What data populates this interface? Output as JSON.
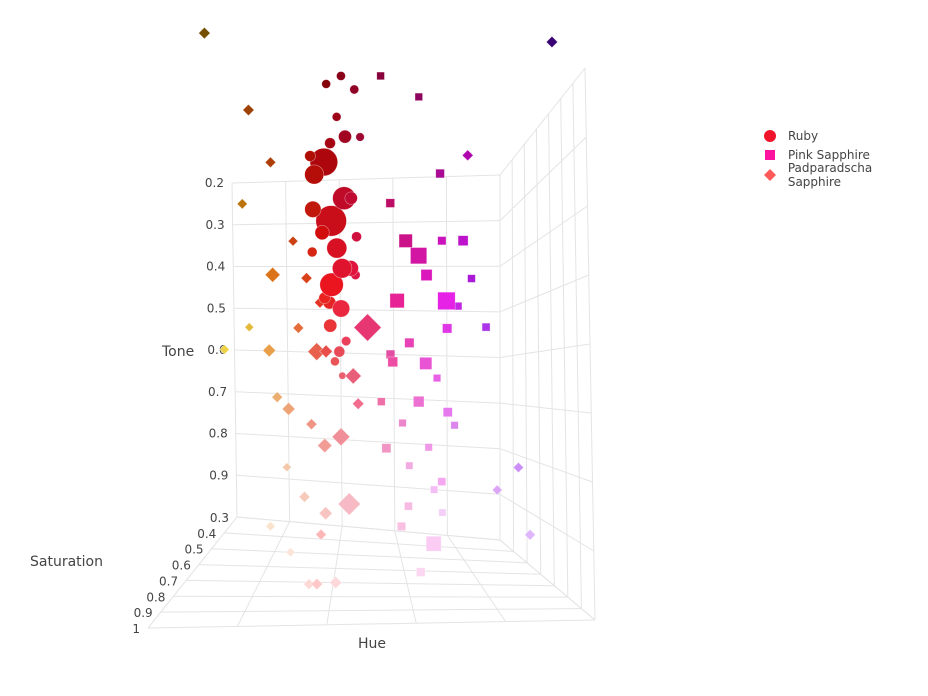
{
  "chart_data": {
    "type": "scatter3d",
    "axes": {
      "x": {
        "title": "Hue",
        "tick_labels": []
      },
      "y": {
        "title": "Saturation",
        "range": [
          0.3,
          1
        ],
        "tick_labels": [
          "0.3",
          "0.4",
          "0.5",
          "0.6",
          "0.7",
          "0.8",
          "0.9",
          "1"
        ]
      },
      "z": {
        "title": "Tone",
        "range": [
          0.2,
          1
        ],
        "tick_labels": [
          "0.2",
          "0.3",
          "0.4",
          "0.5",
          "0.6",
          "0.7",
          "0.8",
          "0.9"
        ]
      }
    },
    "grid": true,
    "legend_position": "top-right",
    "point_format": [
      "hue_degrees",
      "saturation",
      "tone",
      "size"
    ],
    "series": [
      {
        "name": "Ruby",
        "symbol": "circle",
        "legend_color": "#f0152c",
        "points": [
          [
            352,
            0.9,
            0.25,
            8
          ],
          [
            355,
            0.85,
            0.28,
            10
          ],
          [
            358,
            0.8,
            0.3,
            26
          ],
          [
            2,
            0.8,
            0.32,
            18
          ],
          [
            350,
            0.75,
            0.35,
            22
          ],
          [
            356,
            0.7,
            0.38,
            30
          ],
          [
            0,
            0.7,
            0.4,
            14
          ],
          [
            354,
            0.65,
            0.42,
            20
          ],
          [
            348,
            0.6,
            0.45,
            16
          ],
          [
            357,
            0.6,
            0.48,
            24
          ],
          [
            1,
            0.55,
            0.5,
            12
          ],
          [
            353,
            0.55,
            0.52,
            18
          ],
          [
            359,
            0.5,
            0.55,
            14
          ],
          [
            351,
            0.5,
            0.58,
            10
          ],
          [
            355,
            0.45,
            0.6,
            12
          ],
          [
            350,
            0.95,
            0.2,
            8
          ],
          [
            345,
            0.95,
            0.22,
            8
          ],
          [
            356,
            0.9,
            0.2,
            8
          ],
          [
            3,
            0.85,
            0.3,
            10
          ],
          [
            347,
            0.75,
            0.35,
            12
          ],
          [
            345,
            0.65,
            0.4,
            10
          ],
          [
            4,
            0.7,
            0.36,
            16
          ],
          [
            352,
            0.6,
            0.45,
            20
          ],
          [
            358,
            0.4,
            0.62,
            10
          ],
          [
            354,
            0.4,
            0.65,
            8
          ],
          [
            349,
            0.85,
            0.27,
            12
          ],
          [
            346,
            0.5,
            0.45,
            10
          ],
          [
            6,
            0.6,
            0.42,
            10
          ],
          [
            343,
            0.8,
            0.26,
            8
          ],
          [
            0,
            0.45,
            0.5,
            14
          ]
        ]
      },
      {
        "name": "Pink Sapphire",
        "symbol": "square",
        "legend_color": "#ff14a0",
        "points": [
          [
            335,
            0.95,
            0.2,
            8
          ],
          [
            320,
            0.9,
            0.22,
            8
          ],
          [
            330,
            0.7,
            0.35,
            10
          ],
          [
            322,
            0.6,
            0.4,
            16
          ],
          [
            315,
            0.55,
            0.42,
            20
          ],
          [
            310,
            0.5,
            0.45,
            14
          ],
          [
            305,
            0.6,
            0.4,
            10
          ],
          [
            300,
            0.5,
            0.5,
            22
          ],
          [
            298,
            0.45,
            0.55,
            12
          ],
          [
            325,
            0.5,
            0.5,
            18
          ],
          [
            318,
            0.45,
            0.58,
            12
          ],
          [
            308,
            0.4,
            0.62,
            16
          ],
          [
            300,
            0.35,
            0.65,
            10
          ],
          [
            312,
            0.4,
            0.7,
            14
          ],
          [
            296,
            0.4,
            0.72,
            12
          ],
          [
            320,
            0.35,
            0.75,
            10
          ],
          [
            305,
            0.35,
            0.8,
            10
          ],
          [
            330,
            0.4,
            0.8,
            12
          ],
          [
            315,
            0.3,
            0.85,
            10
          ],
          [
            300,
            0.3,
            0.9,
            10
          ],
          [
            320,
            0.5,
            0.9,
            10
          ],
          [
            310,
            0.6,
            0.95,
            18
          ],
          [
            325,
            0.6,
            0.92,
            10
          ],
          [
            290,
            0.4,
            0.5,
            10
          ],
          [
            285,
            0.45,
            0.45,
            10
          ],
          [
            280,
            0.5,
            0.55,
            10
          ],
          [
            295,
            0.6,
            0.4,
            12
          ],
          [
            328,
            0.55,
            0.62,
            12
          ],
          [
            333,
            0.45,
            0.7,
            10
          ],
          [
            303,
            0.5,
            0.85,
            10
          ],
          [
            318,
            0.7,
            0.98,
            10
          ],
          [
            295,
            0.3,
            0.95,
            10
          ],
          [
            326,
            0.3,
            0.6,
            12
          ],
          [
            308,
            0.7,
            0.3,
            10
          ],
          [
            290,
            0.35,
            0.75,
            10
          ]
        ]
      },
      {
        "name": "Padparadscha Sapphire",
        "symbol": "diamond",
        "legend_color": "#ff5a5a",
        "points": [
          [
            40,
            1.0,
            0.15,
            10
          ],
          [
            25,
            0.95,
            0.25,
            10
          ],
          [
            20,
            0.8,
            0.3,
            10
          ],
          [
            35,
            0.7,
            0.35,
            10
          ],
          [
            15,
            0.6,
            0.4,
            10
          ],
          [
            28,
            0.5,
            0.45,
            16
          ],
          [
            12,
            0.45,
            0.45,
            12
          ],
          [
            5,
            0.45,
            0.5,
            12
          ],
          [
            45,
            0.4,
            0.55,
            10
          ],
          [
            50,
            0.55,
            0.6,
            10
          ],
          [
            32,
            0.45,
            0.6,
            14
          ],
          [
            18,
            0.4,
            0.55,
            12
          ],
          [
            8,
            0.4,
            0.6,
            20
          ],
          [
            2,
            0.45,
            0.6,
            14
          ],
          [
            340,
            0.45,
            0.55,
            30
          ],
          [
            348,
            0.4,
            0.65,
            18
          ],
          [
            30,
            0.4,
            0.7,
            12
          ],
          [
            22,
            0.45,
            0.72,
            14
          ],
          [
            10,
            0.45,
            0.75,
            12
          ],
          [
            4,
            0.4,
            0.8,
            16
          ],
          [
            355,
            0.4,
            0.78,
            20
          ],
          [
            25,
            0.4,
            0.85,
            10
          ],
          [
            14,
            0.45,
            0.9,
            12
          ],
          [
            2,
            0.5,
            0.92,
            14
          ],
          [
            350,
            0.5,
            0.9,
            24
          ],
          [
            30,
            0.5,
            0.95,
            10
          ],
          [
            20,
            0.5,
            1.0,
            10
          ],
          [
            355,
            0.7,
            1.0,
            12
          ],
          [
            5,
            0.8,
            0.98,
            10
          ],
          [
            345,
            0.55,
            0.7,
            12
          ],
          [
            0,
            0.8,
            0.9,
            10
          ],
          [
            270,
            0.95,
            0.15,
            10
          ],
          [
            300,
            0.85,
            0.3,
            10
          ],
          [
            275,
            0.7,
            0.8,
            10
          ],
          [
            280,
            0.6,
            0.85,
            10
          ],
          [
            275,
            0.8,
            0.9,
            10
          ],
          [
            0,
            0.95,
            0.95,
            10
          ]
        ]
      }
    ]
  }
}
